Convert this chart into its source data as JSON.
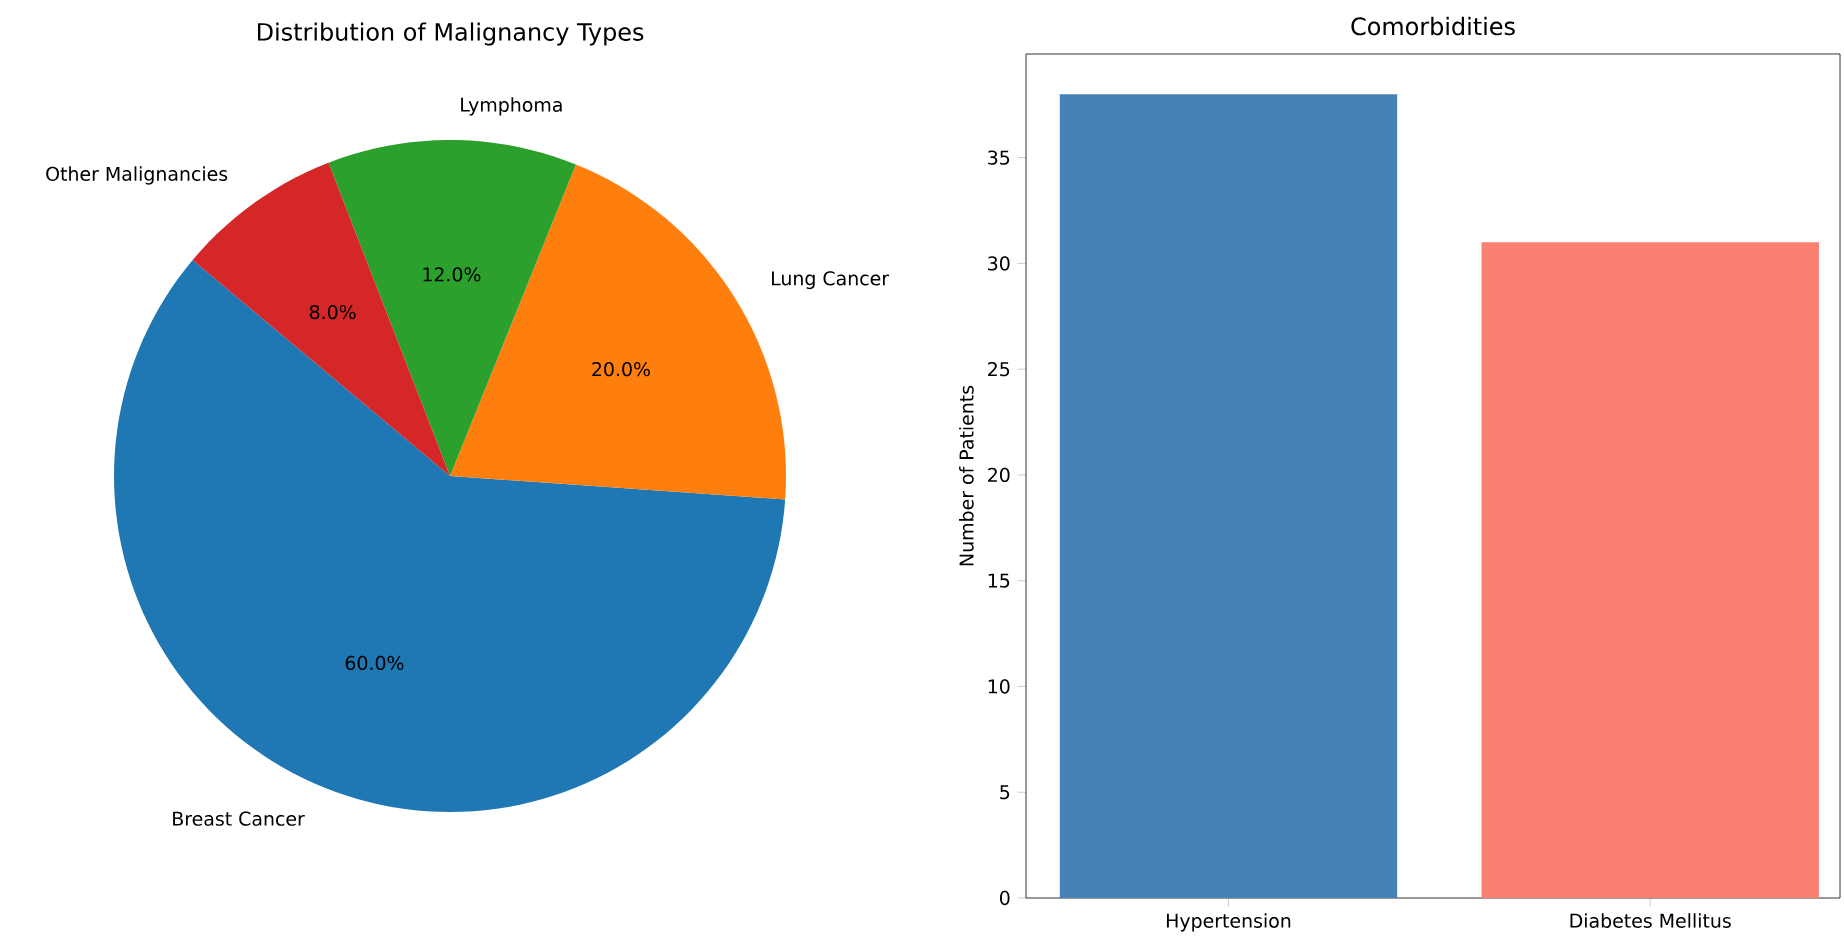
{
  "chart_data": [
    {
      "type": "pie",
      "title": "Distribution of Malignancy Types",
      "categories": [
        "Breast Cancer",
        "Lung Cancer",
        "Lymphoma",
        "Other Malignancies"
      ],
      "values": [
        60,
        20,
        12,
        8
      ],
      "colors": [
        "#1f77b4",
        "#ff7f0e",
        "#2ca02c",
        "#d62728"
      ],
      "value_labels": [
        "60.0%",
        "20.0%",
        "12.0%",
        "8.0%"
      ]
    },
    {
      "type": "bar",
      "title": "Comorbidities",
      "ylabel": "Number of Patients",
      "categories": [
        "Hypertension",
        "Diabetes Mellitus"
      ],
      "values": [
        38,
        31
      ],
      "colors": [
        "#4682b4",
        "#fa8072"
      ],
      "ylim": [
        0,
        39.9
      ],
      "yticks": [
        0,
        5,
        10,
        15,
        20,
        25,
        30,
        35
      ]
    }
  ]
}
